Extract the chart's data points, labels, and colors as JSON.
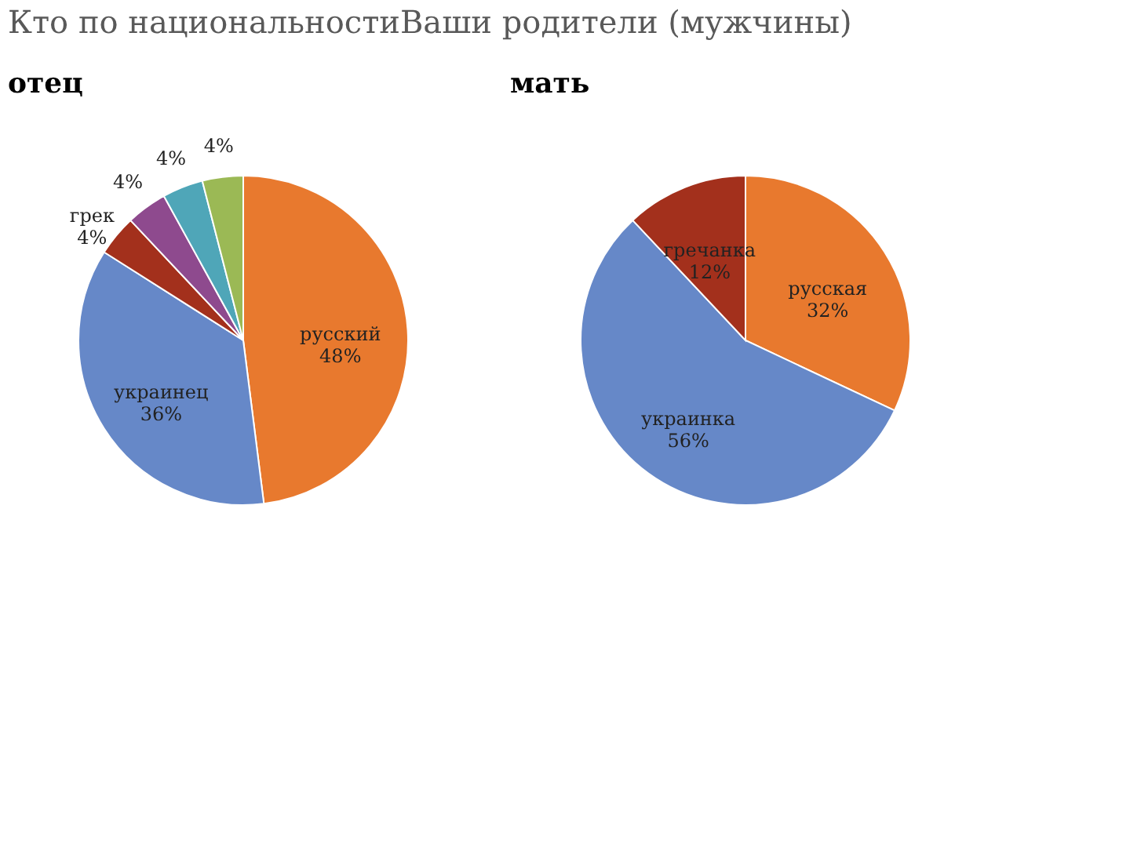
{
  "chart_data": [
    {
      "type": "pie",
      "title": "отец",
      "annotations": [
        "Кто по национальностиВаши родители (мужчины)"
      ],
      "categories": [
        "русский",
        "украинец",
        "грек",
        null,
        null,
        null
      ],
      "values": [
        48,
        36,
        4,
        4,
        4,
        4
      ],
      "value_labels": [
        "48%",
        "36%",
        "4%",
        "4%",
        "4%",
        "4%"
      ],
      "colors": [
        "#e8792e",
        "#6688c8",
        "#a3301c",
        "#8e4a8e",
        "#4fa6b8",
        "#9bb955"
      ],
      "legend": false
    },
    {
      "type": "pie",
      "title": "мать",
      "categories": [
        "русская",
        "украинка",
        "гречанка"
      ],
      "values": [
        32,
        56,
        12
      ],
      "value_labels": [
        "32%",
        "56%",
        "12%"
      ],
      "colors": [
        "#e8792e",
        "#6f96d8",
        "#a3301c"
      ],
      "legend": false
    }
  ]
}
